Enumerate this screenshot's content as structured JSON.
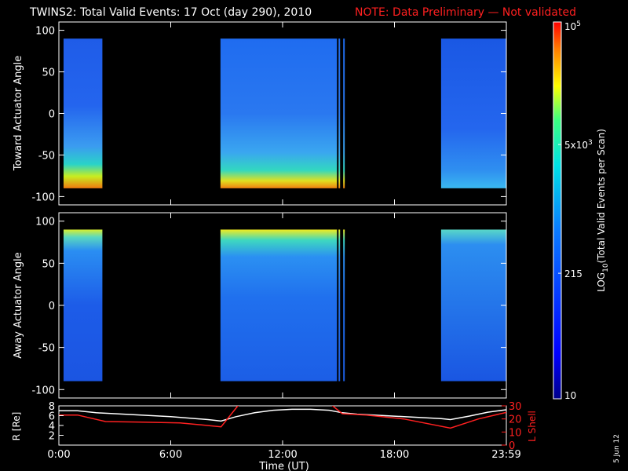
{
  "title": "TWINS2: Total Valid Events: 17 Oct (day 290), 2010",
  "note": "NOTE: Data Preliminary — Not validated",
  "date_stamp": "5 Jun 12",
  "colors": {
    "background": "#000000",
    "text": "#ffffff",
    "note": "#ff2020",
    "lshell": "#ff2020",
    "radius": "#ffffff"
  },
  "chart_data": [
    {
      "type": "heatmap",
      "panel": "toward",
      "ylabel": "Toward Actuator Angle",
      "ylim": [
        -110,
        110
      ],
      "yticks": [
        "100",
        "50",
        "0",
        "-50",
        "-100"
      ],
      "ytick_values": [
        100,
        50,
        0,
        -50,
        -100
      ],
      "x_range_hours": [
        0,
        24
      ],
      "angle_coverage": [
        -90,
        90
      ],
      "data_intervals_ut": [
        [
          "00:15",
          "02:20"
        ],
        [
          "08:40",
          "14:55"
        ],
        [
          "15:00",
          "15:05"
        ],
        [
          "15:15",
          "15:20"
        ],
        [
          "20:30",
          "23:59"
        ]
      ],
      "colorscale": "log10"
    },
    {
      "type": "heatmap",
      "panel": "away",
      "ylabel": "Away Actuator Angle",
      "ylim": [
        -110,
        110
      ],
      "yticks": [
        "100",
        "50",
        "0",
        "-50",
        "-100"
      ],
      "ytick_values": [
        100,
        50,
        0,
        -50,
        -100
      ],
      "x_range_hours": [
        0,
        24
      ],
      "angle_coverage": [
        -90,
        90
      ],
      "data_intervals_ut": [
        [
          "00:15",
          "02:20"
        ],
        [
          "08:40",
          "14:55"
        ],
        [
          "15:00",
          "15:05"
        ],
        [
          "15:15",
          "15:20"
        ],
        [
          "20:30",
          "23:59"
        ]
      ],
      "colorscale": "log10"
    },
    {
      "type": "line",
      "panel": "orbit",
      "ylabel_left": "R [Re]",
      "ylabel_right": "L Shell",
      "xlabel": "Time (UT)",
      "xticks": [
        "0:00",
        "6:00",
        "12:00",
        "18:00",
        "23:59"
      ],
      "xtick_hours": [
        0,
        6,
        12,
        18,
        24
      ],
      "left_ylim": [
        0,
        8
      ],
      "left_yticks": [
        "8",
        "6",
        "4",
        "2"
      ],
      "right_ylim": [
        0,
        30
      ],
      "right_yticks": [
        "30",
        "20",
        "10",
        "0"
      ],
      "series": [
        {
          "name": "R [Re]",
          "axis": "left",
          "x": [
            0,
            1,
            2,
            4,
            6,
            8,
            8.7,
            9.5,
            10.5,
            11.5,
            12.5,
            13.5,
            14.5,
            15.2,
            16,
            17.5,
            19,
            20.5,
            21,
            22,
            23,
            24
          ],
          "y": [
            7.0,
            7.0,
            6.6,
            6.2,
            5.8,
            5.2,
            4.9,
            5.8,
            6.6,
            7.1,
            7.3,
            7.3,
            7.1,
            6.6,
            6.3,
            6.0,
            5.7,
            5.4,
            5.2,
            5.9,
            6.7,
            7.2
          ]
        },
        {
          "name": "L Shell",
          "axis": "right",
          "x": [
            0,
            1,
            2.5,
            4.5,
            6.5,
            8.7,
            9.6,
            9.75,
            null,
            14.6,
            15.2,
            16.5,
            18.5,
            21.0,
            22.5,
            24
          ],
          "y": [
            23,
            23,
            18,
            17.5,
            17,
            14,
            30,
            31,
            null,
            31,
            24,
            23,
            20,
            13,
            20,
            25
          ]
        }
      ]
    }
  ],
  "colorbar": {
    "label_prefix": "LOG",
    "label_sub": "10",
    "label_rest": "(Total Valid Events per Scan)",
    "tick_labels": [
      {
        "base": "10",
        "exp": "",
        "value": 10
      },
      {
        "base": "215",
        "exp": "",
        "value": 215
      },
      {
        "base": "5x10",
        "exp": "3",
        "value": 5000
      },
      {
        "base": "10",
        "exp": "5",
        "value": 100000
      }
    ],
    "range": [
      10,
      100000
    ]
  }
}
